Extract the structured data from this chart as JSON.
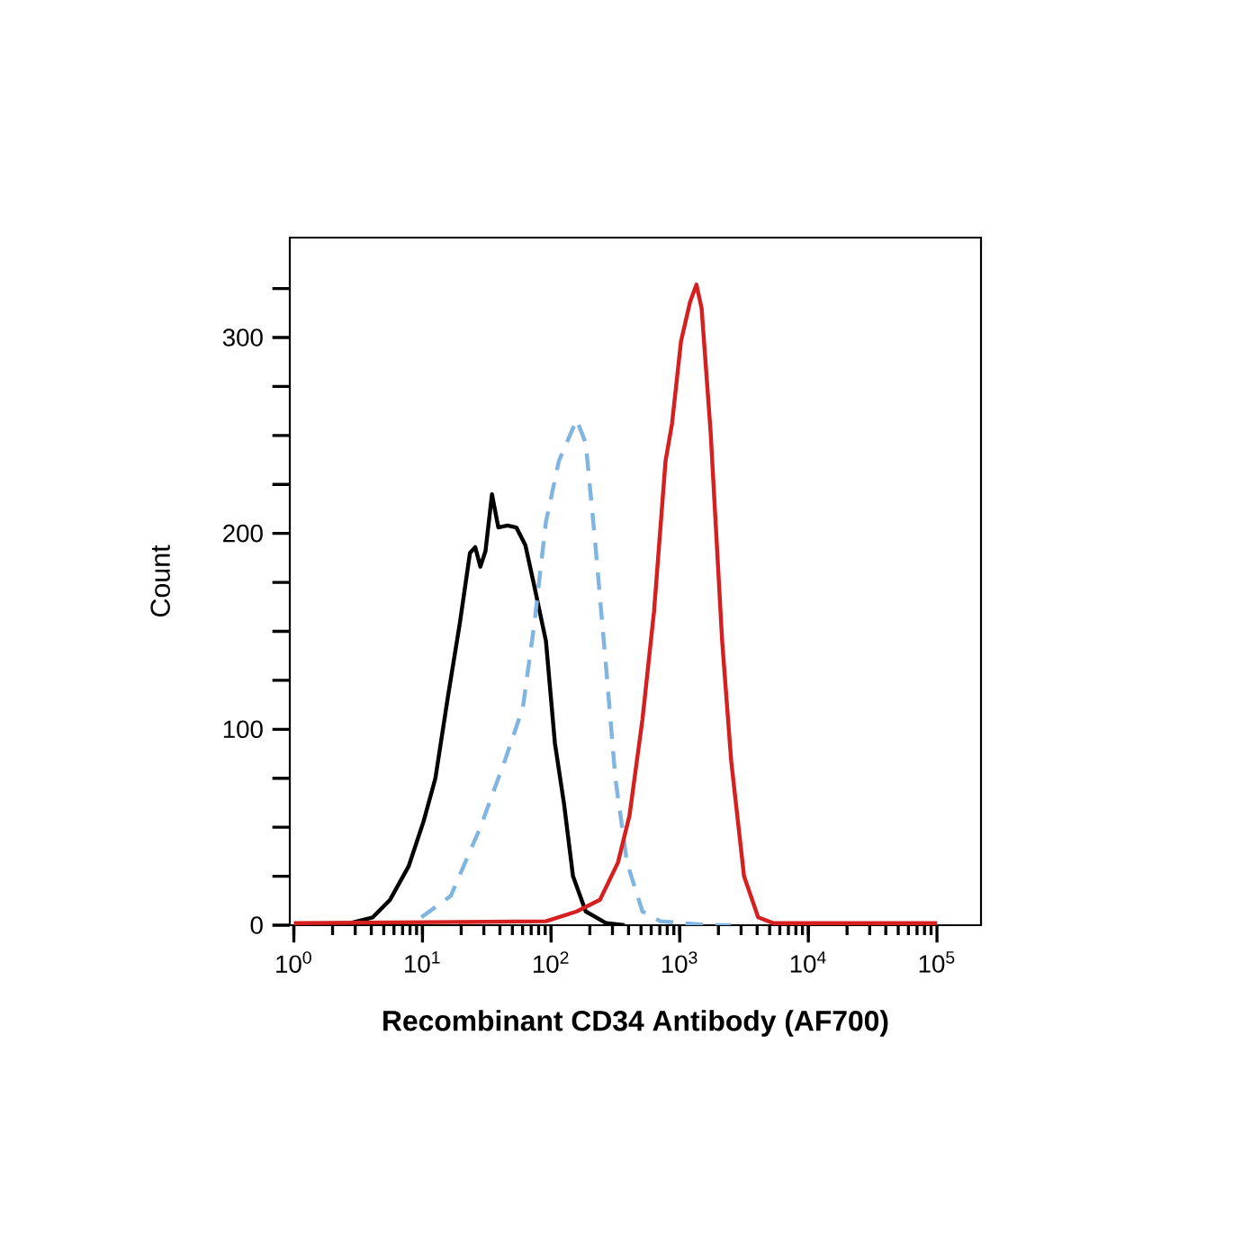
{
  "chart_data": {
    "type": "line",
    "xlabel": "Recombinant CD34 Antibody (AF700)",
    "ylabel": "Count",
    "log": "x",
    "marker": "none",
    "xlim": [
      0.93,
      220000
    ],
    "ylim": [
      0,
      351
    ],
    "xticks": [
      {
        "value": 1,
        "label": "10$^{0}$"
      },
      {
        "value": 10,
        "label": "10$^{1}$"
      },
      {
        "value": 100,
        "label": "10$^{2}$"
      },
      {
        "value": 1000,
        "label": "10$^{3}$"
      },
      {
        "value": 10000,
        "label": "10$^{4}$"
      },
      {
        "value": 100000,
        "label": "10$^{5}$"
      }
    ],
    "yticks": [
      0,
      {
        "value": 25,
        "label": null
      },
      {
        "value": 50,
        "label": null
      },
      {
        "value": 75,
        "label": null
      },
      100,
      {
        "value": 125,
        "label": null
      },
      {
        "value": 150,
        "label": null
      },
      {
        "value": 175,
        "label": null
      },
      200,
      {
        "value": 225,
        "label": null
      },
      {
        "value": 250,
        "label": null
      },
      {
        "value": 275,
        "label": null
      },
      300,
      {
        "value": 325,
        "label": null
      }
    ],
    "series": [
      {
        "color": "#000000",
        "line_style": "solid",
        "x": [
          2.0,
          2.7,
          4.1,
          5.6,
          7.8,
          10.2,
          12.6,
          15.8,
          19.5,
          23.4,
          25.7,
          28.2,
          30.9,
          34.7,
          38.9,
          45.7,
          53.7,
          63.1,
          74.1,
          91.2,
          107,
          126,
          148,
          186,
          269,
          372
        ],
        "values": [
          0,
          1,
          4,
          13,
          30,
          53,
          75,
          117,
          154,
          190,
          193,
          183,
          191,
          220,
          203,
          204,
          203,
          194,
          173,
          145,
          93,
          62,
          25,
          7,
          1,
          0
        ]
      },
      {
        "color": "#7fb5e0",
        "line_style": "dashed",
        "x": [
          9.8,
          16.6,
          28.2,
          43.7,
          60.3,
          74.1,
          91.2,
          115,
          158,
          186,
          219,
          269,
          316,
          389,
          513,
          708,
          1660,
          2500
        ],
        "values": [
          4,
          15,
          50,
          84,
          111,
          154,
          206,
          237,
          258,
          246,
          197,
          130,
          75,
          32,
          7,
          2,
          0,
          0
        ]
      },
      {
        "color": "#d62020",
        "line_style": "solid",
        "x": [
          1.0,
          91.2,
          158,
          240,
          331,
          407,
          513,
          631,
          776,
          871,
          1023,
          1202,
          1349,
          1479,
          1738,
          2138,
          2512,
          3162,
          4074,
          5370,
          100000
        ],
        "values": [
          1,
          2,
          7,
          13,
          32,
          56,
          105,
          160,
          237,
          256,
          298,
          318,
          327,
          315,
          252,
          145,
          84,
          25,
          4,
          1,
          1
        ]
      }
    ]
  }
}
